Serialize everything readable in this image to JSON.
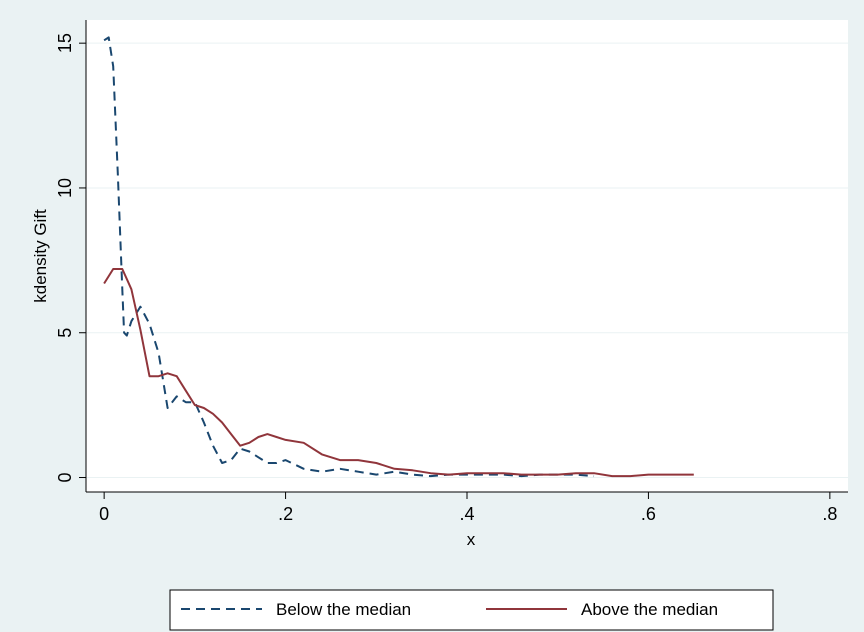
{
  "chart_data": {
    "type": "line",
    "xlabel": "x",
    "ylabel": "kdensity Gift",
    "xlim": [
      -0.02,
      0.82
    ],
    "ylim": [
      -0.5,
      15.8
    ],
    "x_ticks": [
      0,
      0.2,
      0.4,
      0.6,
      0.8
    ],
    "x_tick_labels": [
      "0",
      ".2",
      ".4",
      ".6",
      ".8"
    ],
    "y_ticks": [
      0,
      5,
      10,
      15
    ],
    "y_tick_labels": [
      "0",
      "5",
      "10",
      "15"
    ],
    "grid": true,
    "legend_position": "bottom",
    "series": [
      {
        "name": "Below the median",
        "color": "#1a476f",
        "dash": "dashed",
        "x": [
          0.0,
          0.005,
          0.01,
          0.015,
          0.02,
          0.022,
          0.025,
          0.03,
          0.04,
          0.05,
          0.06,
          0.07,
          0.08,
          0.09,
          0.1,
          0.11,
          0.12,
          0.13,
          0.14,
          0.15,
          0.16,
          0.17,
          0.18,
          0.19,
          0.2,
          0.22,
          0.24,
          0.26,
          0.28,
          0.3,
          0.32,
          0.34,
          0.36,
          0.38,
          0.4,
          0.42,
          0.44,
          0.46,
          0.48,
          0.5,
          0.52,
          0.54
        ],
        "y": [
          15.1,
          15.2,
          14.2,
          10.5,
          6.5,
          5.0,
          4.9,
          5.4,
          5.9,
          5.3,
          4.3,
          2.4,
          2.8,
          2.6,
          2.6,
          1.9,
          1.1,
          0.5,
          0.6,
          1.0,
          0.9,
          0.7,
          0.5,
          0.5,
          0.6,
          0.3,
          0.2,
          0.3,
          0.2,
          0.1,
          0.2,
          0.1,
          0.05,
          0.1,
          0.1,
          0.1,
          0.1,
          0.05,
          0.1,
          0.1,
          0.1,
          0.05
        ]
      },
      {
        "name": "Above the median",
        "color": "#90353b",
        "dash": "solid",
        "x": [
          0.0,
          0.01,
          0.02,
          0.03,
          0.04,
          0.05,
          0.06,
          0.07,
          0.08,
          0.09,
          0.1,
          0.11,
          0.12,
          0.13,
          0.14,
          0.15,
          0.16,
          0.17,
          0.18,
          0.19,
          0.2,
          0.22,
          0.24,
          0.26,
          0.28,
          0.3,
          0.32,
          0.34,
          0.36,
          0.38,
          0.4,
          0.42,
          0.44,
          0.46,
          0.48,
          0.5,
          0.52,
          0.54,
          0.56,
          0.58,
          0.6,
          0.62,
          0.65
        ],
        "y": [
          6.7,
          7.2,
          7.2,
          6.5,
          5.1,
          3.5,
          3.5,
          3.6,
          3.5,
          3.0,
          2.5,
          2.4,
          2.2,
          1.9,
          1.5,
          1.1,
          1.2,
          1.4,
          1.5,
          1.4,
          1.3,
          1.2,
          0.8,
          0.6,
          0.6,
          0.5,
          0.3,
          0.25,
          0.15,
          0.1,
          0.15,
          0.15,
          0.15,
          0.1,
          0.1,
          0.1,
          0.15,
          0.15,
          0.05,
          0.05,
          0.1,
          0.1,
          0.1
        ]
      }
    ]
  }
}
